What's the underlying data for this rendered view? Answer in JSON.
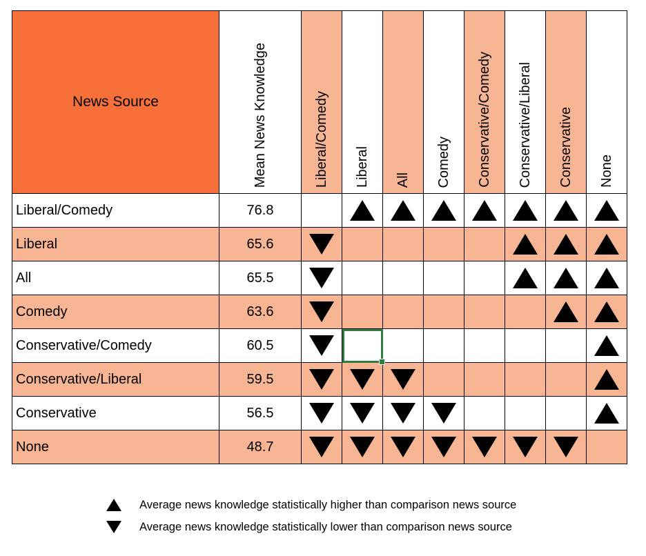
{
  "chart_data": {
    "type": "table",
    "corner_header": "News Source",
    "mean_header": "Mean News Knowledge",
    "comparison_columns": [
      "Liberal/Comedy",
      "Liberal",
      "All",
      "Comedy",
      "Conservative/Comedy",
      "Conservative/Liberal",
      "Conservative",
      "None"
    ],
    "shaded_columns": [
      true,
      false,
      true,
      false,
      true,
      false,
      true,
      false
    ],
    "rows": [
      {
        "source": "Liberal/Comedy",
        "mean": "76.8",
        "shaded": false,
        "marks": [
          "",
          "up",
          "up",
          "up",
          "up",
          "up",
          "up",
          "up"
        ]
      },
      {
        "source": "Liberal",
        "mean": "65.6",
        "shaded": true,
        "marks": [
          "down",
          "",
          "",
          "",
          "",
          "up",
          "up",
          "up"
        ]
      },
      {
        "source": "All",
        "mean": "65.5",
        "shaded": false,
        "marks": [
          "down",
          "",
          "",
          "",
          "",
          "up",
          "up",
          "up"
        ]
      },
      {
        "source": "Comedy",
        "mean": "63.6",
        "shaded": true,
        "marks": [
          "down",
          "",
          "",
          "",
          "",
          "",
          "up",
          "up"
        ]
      },
      {
        "source": "Conservative/Comedy",
        "mean": "60.5",
        "shaded": false,
        "marks": [
          "down",
          "",
          "",
          "",
          "",
          "",
          "",
          "up"
        ]
      },
      {
        "source": "Conservative/Liberal",
        "mean": "59.5",
        "shaded": true,
        "marks": [
          "down",
          "down",
          "down",
          "",
          "",
          "",
          "",
          "up"
        ]
      },
      {
        "source": "Conservative",
        "mean": "56.5",
        "shaded": false,
        "marks": [
          "down",
          "down",
          "down",
          "down",
          "",
          "",
          "",
          "up"
        ]
      },
      {
        "source": "None",
        "mean": "48.7",
        "shaded": true,
        "marks": [
          "down",
          "down",
          "down",
          "down",
          "down",
          "down",
          "down",
          ""
        ]
      }
    ],
    "selected_cell": {
      "row": 4,
      "col": 1
    },
    "legend": [
      {
        "symbol": "up",
        "text": "Average news knowledge statistically higher than comparison news source"
      },
      {
        "symbol": "down",
        "text": "Average news knowledge statistically lower than comparison news source"
      }
    ],
    "colors": {
      "corner": "#f7703a",
      "shade": "#f8b594",
      "selection": "#2e7d3e",
      "mark": "#000000"
    }
  }
}
